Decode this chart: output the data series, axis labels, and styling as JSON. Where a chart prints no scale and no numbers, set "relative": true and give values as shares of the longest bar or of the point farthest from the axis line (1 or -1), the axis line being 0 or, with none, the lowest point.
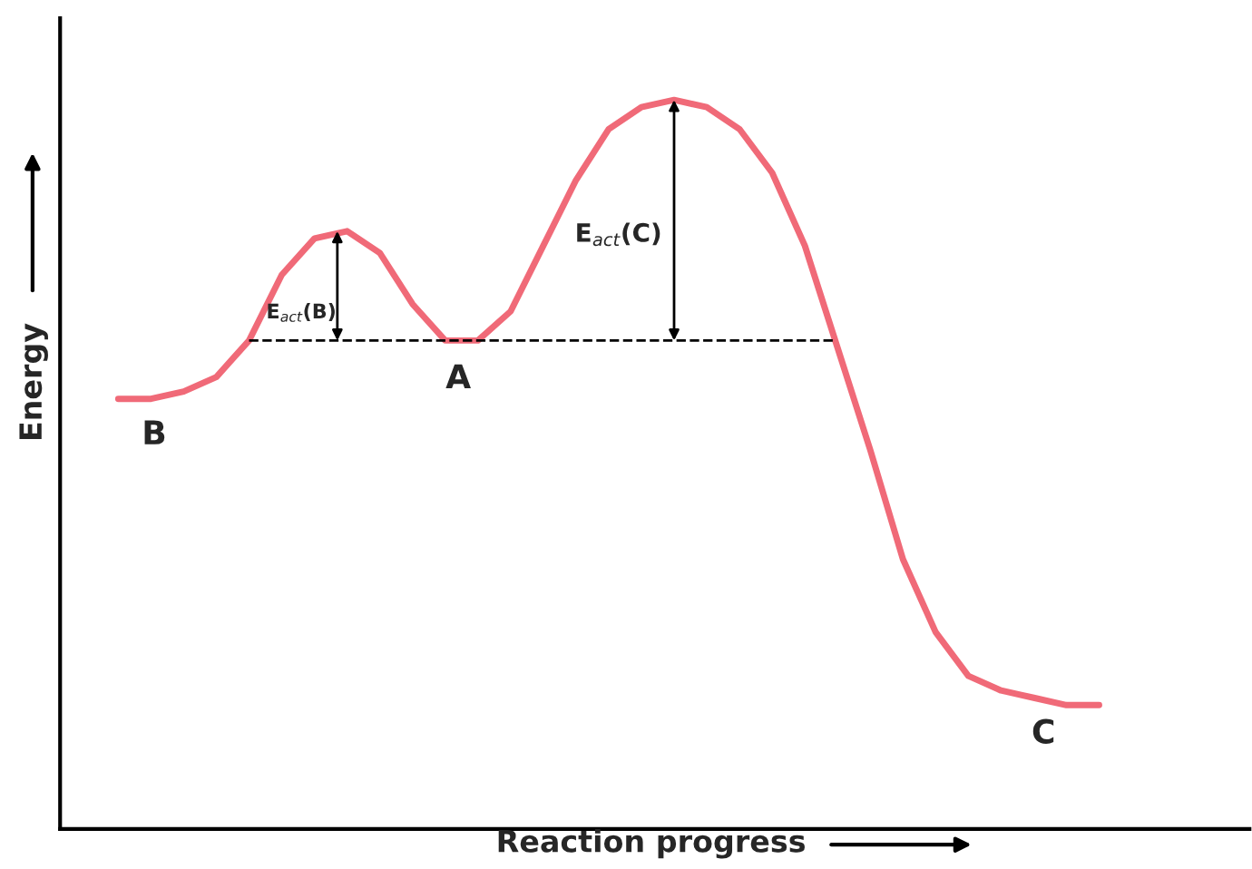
{
  "chart_data": {
    "type": "line",
    "relative": true,
    "xlabel": "Reaction progress",
    "ylabel": "Energy",
    "categories": [
      null,
      null,
      null,
      null,
      null,
      null,
      null,
      null,
      null,
      null,
      null,
      null,
      null,
      null,
      null,
      null,
      null,
      null,
      null,
      null,
      null,
      null,
      null,
      null,
      null,
      null,
      null,
      null,
      null,
      null,
      null
    ],
    "series": [
      {
        "color": "#f06a78",
        "values": [
          0.59,
          0.59,
          0.6,
          0.62,
          0.67,
          0.76,
          0.81,
          0.82,
          0.79,
          0.72,
          0.67,
          0.67,
          0.71,
          0.8,
          0.89,
          0.96,
          0.99,
          1.0,
          0.99,
          0.96,
          0.9,
          0.8,
          0.66,
          0.52,
          0.37,
          0.27,
          0.21,
          0.19,
          0.18,
          0.17,
          0.17
        ]
      }
    ],
    "ref_lines": [
      {
        "axis": "y",
        "value": 0.67,
        "color": "#000000",
        "line_style": "dashed"
      }
    ],
    "annotations": [
      "B",
      "A",
      "C",
      "E$_{act}$(B)",
      "E$_{act}$(C)"
    ],
    "marker": "none",
    "line_style": "solid",
    "legend": false
  }
}
